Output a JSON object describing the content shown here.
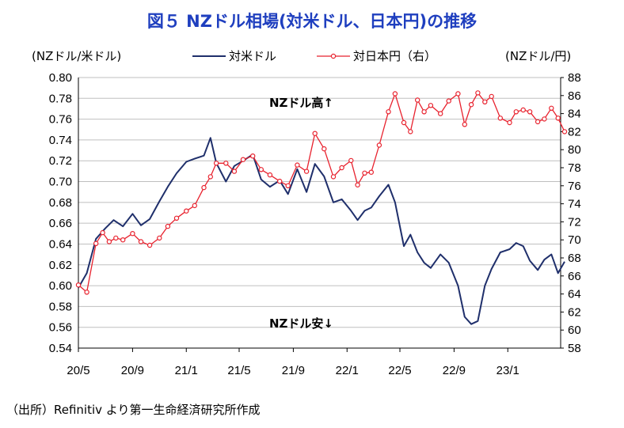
{
  "chart_data": {
    "type": "line",
    "title": "図５ NZドル相場(対米ドル、日本円)の推移",
    "y_left_label": "(NZドル/米ドル)",
    "y_right_label": "(NZドル/円)",
    "y_left_range": [
      0.54,
      0.8
    ],
    "y_left_ticks": [
      "0.80",
      "0.78",
      "0.76",
      "0.74",
      "0.72",
      "0.70",
      "0.68",
      "0.66",
      "0.64",
      "0.62",
      "0.60",
      "0.58",
      "0.56",
      "0.54"
    ],
    "y_right_range": [
      58,
      88
    ],
    "y_right_ticks": [
      "88",
      "86",
      "84",
      "82",
      "80",
      "78",
      "76",
      "74",
      "72",
      "70",
      "68",
      "66",
      "64",
      "62",
      "60",
      "58"
    ],
    "x_ticks": [
      "20/5",
      "20/9",
      "21/1",
      "21/5",
      "21/9",
      "22/1",
      "22/5",
      "22/9",
      "23/1"
    ],
    "x_range": [
      "2020-05",
      "2023-05"
    ],
    "grid": true,
    "legend_position": "top",
    "annotations": {
      "up": "NZドル高↑",
      "down": "NZドル安↓"
    },
    "series": [
      {
        "name": "対米ドル",
        "axis": "left",
        "color": "#1f2f6b",
        "marker": "none",
        "points": [
          [
            "2020-05-01",
            0.598
          ],
          [
            "2020-05-20",
            0.612
          ],
          [
            "2020-06-10",
            0.645
          ],
          [
            "2020-07-01",
            0.655
          ],
          [
            "2020-07-20",
            0.663
          ],
          [
            "2020-08-10",
            0.657
          ],
          [
            "2020-09-01",
            0.669
          ],
          [
            "2020-09-20",
            0.658
          ],
          [
            "2020-10-10",
            0.664
          ],
          [
            "2020-11-01",
            0.681
          ],
          [
            "2020-11-20",
            0.695
          ],
          [
            "2020-12-10",
            0.708
          ],
          [
            "2021-01-01",
            0.719
          ],
          [
            "2021-01-20",
            0.722
          ],
          [
            "2021-02-10",
            0.725
          ],
          [
            "2021-02-25",
            0.742
          ],
          [
            "2021-03-10",
            0.718
          ],
          [
            "2021-04-01",
            0.7
          ],
          [
            "2021-04-20",
            0.715
          ],
          [
            "2021-05-10",
            0.72
          ],
          [
            "2021-06-01",
            0.726
          ],
          [
            "2021-06-20",
            0.702
          ],
          [
            "2021-07-10",
            0.695
          ],
          [
            "2021-08-01",
            0.701
          ],
          [
            "2021-08-20",
            0.688
          ],
          [
            "2021-09-10",
            0.712
          ],
          [
            "2021-10-01",
            0.69
          ],
          [
            "2021-10-20",
            0.717
          ],
          [
            "2021-11-10",
            0.705
          ],
          [
            "2021-12-01",
            0.68
          ],
          [
            "2021-12-20",
            0.683
          ],
          [
            "2022-01-10",
            0.672
          ],
          [
            "2022-01-25",
            0.663
          ],
          [
            "2022-02-10",
            0.672
          ],
          [
            "2022-02-25",
            0.675
          ],
          [
            "2022-03-15",
            0.686
          ],
          [
            "2022-04-05",
            0.697
          ],
          [
            "2022-04-20",
            0.68
          ],
          [
            "2022-05-10",
            0.638
          ],
          [
            "2022-05-25",
            0.649
          ],
          [
            "2022-06-10",
            0.632
          ],
          [
            "2022-06-25",
            0.622
          ],
          [
            "2022-07-10",
            0.617
          ],
          [
            "2022-08-01",
            0.63
          ],
          [
            "2022-08-20",
            0.622
          ],
          [
            "2022-09-10",
            0.6
          ],
          [
            "2022-09-25",
            0.57
          ],
          [
            "2022-10-10",
            0.563
          ],
          [
            "2022-10-25",
            0.566
          ],
          [
            "2022-11-10",
            0.6
          ],
          [
            "2022-11-25",
            0.616
          ],
          [
            "2022-12-15",
            0.632
          ],
          [
            "2023-01-05",
            0.635
          ],
          [
            "2023-01-20",
            0.641
          ],
          [
            "2023-02-05",
            0.638
          ],
          [
            "2023-02-20",
            0.624
          ],
          [
            "2023-03-10",
            0.615
          ],
          [
            "2023-03-25",
            0.625
          ],
          [
            "2023-04-10",
            0.63
          ],
          [
            "2023-04-25",
            0.612
          ],
          [
            "2023-05-10",
            0.623
          ]
        ]
      },
      {
        "name": "対日本円（右）",
        "axis": "right",
        "color": "#e8222e",
        "marker": "circle",
        "points": [
          [
            "2020-05-01",
            65.0
          ],
          [
            "2020-05-20",
            64.2
          ],
          [
            "2020-06-10",
            69.6
          ],
          [
            "2020-06-25",
            70.8
          ],
          [
            "2020-07-10",
            69.8
          ],
          [
            "2020-07-25",
            70.2
          ],
          [
            "2020-08-10",
            70.0
          ],
          [
            "2020-09-01",
            70.7
          ],
          [
            "2020-09-20",
            69.8
          ],
          [
            "2020-10-10",
            69.4
          ],
          [
            "2020-11-01",
            70.2
          ],
          [
            "2020-11-20",
            71.5
          ],
          [
            "2020-12-10",
            72.4
          ],
          [
            "2021-01-01",
            73.2
          ],
          [
            "2021-01-20",
            73.8
          ],
          [
            "2021-02-10",
            75.8
          ],
          [
            "2021-02-25",
            77.0
          ],
          [
            "2021-03-10",
            78.5
          ],
          [
            "2021-04-01",
            78.5
          ],
          [
            "2021-04-20",
            77.6
          ],
          [
            "2021-05-10",
            78.9
          ],
          [
            "2021-06-01",
            79.3
          ],
          [
            "2021-06-20",
            77.8
          ],
          [
            "2021-07-10",
            77.2
          ],
          [
            "2021-08-01",
            76.5
          ],
          [
            "2021-08-20",
            76.0
          ],
          [
            "2021-09-10",
            78.3
          ],
          [
            "2021-10-01",
            77.6
          ],
          [
            "2021-10-20",
            81.8
          ],
          [
            "2021-11-10",
            80.1
          ],
          [
            "2021-12-01",
            77.0
          ],
          [
            "2021-12-20",
            78.0
          ],
          [
            "2022-01-10",
            78.8
          ],
          [
            "2022-01-25",
            76.1
          ],
          [
            "2022-02-10",
            77.4
          ],
          [
            "2022-02-25",
            77.5
          ],
          [
            "2022-03-15",
            80.5
          ],
          [
            "2022-04-05",
            84.2
          ],
          [
            "2022-04-20",
            86.2
          ],
          [
            "2022-05-10",
            83.0
          ],
          [
            "2022-05-25",
            82.0
          ],
          [
            "2022-06-10",
            85.5
          ],
          [
            "2022-06-25",
            84.2
          ],
          [
            "2022-07-10",
            84.9
          ],
          [
            "2022-08-01",
            84.0
          ],
          [
            "2022-08-20",
            85.4
          ],
          [
            "2022-09-10",
            86.2
          ],
          [
            "2022-09-25",
            82.8
          ],
          [
            "2022-10-10",
            85.0
          ],
          [
            "2022-10-25",
            86.3
          ],
          [
            "2022-11-10",
            85.3
          ],
          [
            "2022-11-25",
            85.9
          ],
          [
            "2022-12-15",
            83.5
          ],
          [
            "2023-01-05",
            83.0
          ],
          [
            "2023-01-20",
            84.2
          ],
          [
            "2023-02-05",
            84.4
          ],
          [
            "2023-02-20",
            84.2
          ],
          [
            "2023-03-10",
            83.1
          ],
          [
            "2023-03-25",
            83.4
          ],
          [
            "2023-04-10",
            84.6
          ],
          [
            "2023-04-25",
            83.5
          ],
          [
            "2023-05-10",
            82.0
          ]
        ]
      }
    ]
  },
  "source_note": "（出所）Refinitiv より第一生命経済研究所作成"
}
